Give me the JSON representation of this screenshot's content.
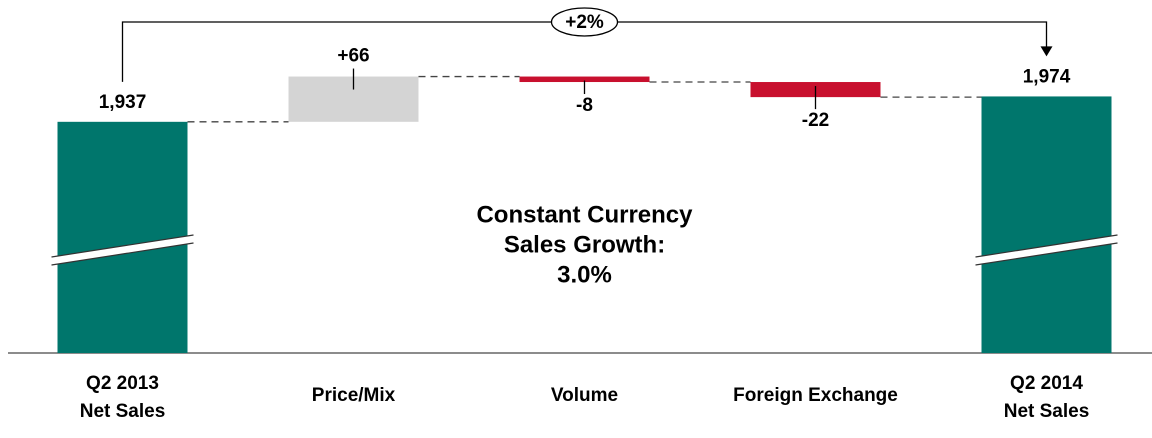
{
  "chart_data": {
    "type": "waterfall",
    "categories": [
      [
        "Q2 2013",
        "Net Sales"
      ],
      [
        "Price/Mix"
      ],
      [
        "Volume"
      ],
      [
        "Foreign Exchange"
      ],
      [
        "Q2 2014",
        "Net Sales"
      ]
    ],
    "values": [
      1937,
      66,
      -8,
      -22,
      1974
    ],
    "value_labels": [
      "1,937",
      "+66",
      "-8",
      "-22",
      "1,974"
    ],
    "totals": [
      true,
      false,
      false,
      false,
      true
    ],
    "colors": {
      "total": "#00766c",
      "increase": "#d4d4d4",
      "decrease": "#c8102e"
    },
    "ylim": [
      1600,
      2100
    ],
    "axis_break": true,
    "growth_label": "+2%",
    "note": [
      "Constant Currency",
      "Sales Growth:",
      "3.0%"
    ]
  }
}
